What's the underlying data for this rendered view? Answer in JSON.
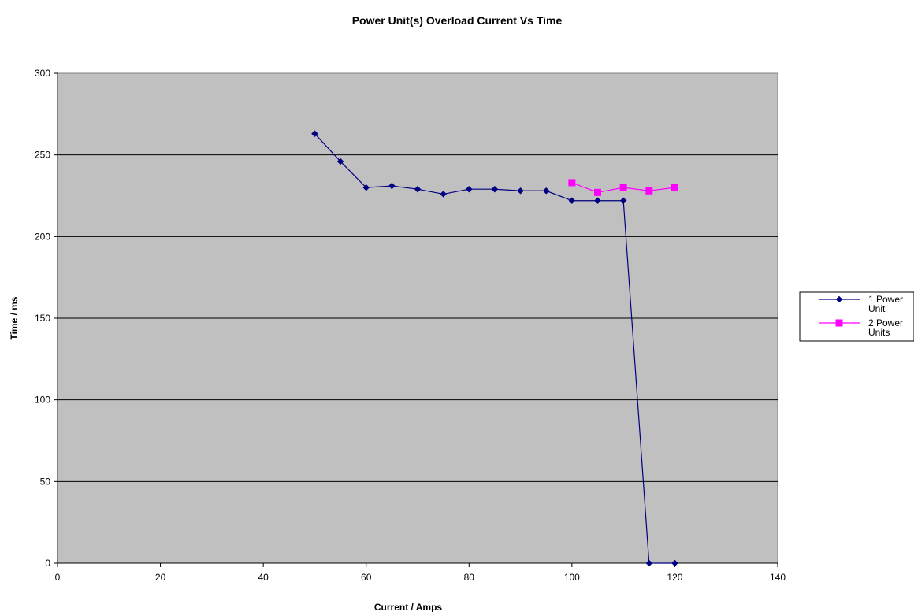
{
  "chart_data": {
    "type": "line",
    "title": "Power Unit(s) Overload Current Vs Time",
    "xlabel": "Current / Amps",
    "ylabel": "Time / ms",
    "xlim": [
      0,
      140
    ],
    "ylim": [
      0,
      300
    ],
    "xticks": [
      0,
      20,
      40,
      60,
      80,
      100,
      120,
      140
    ],
    "yticks": [
      0,
      50,
      100,
      150,
      200,
      250,
      300
    ],
    "grid": "horizontal",
    "plot_background": "#c0c0c0",
    "legend_position": "right",
    "series": [
      {
        "name": "1 Power Unit",
        "legend_lines": [
          "1 Power",
          "Unit"
        ],
        "color": "#000080",
        "marker": "diamond",
        "x": [
          50,
          55,
          60,
          65,
          70,
          75,
          80,
          85,
          90,
          95,
          100,
          105,
          110,
          115,
          120
        ],
        "y": [
          263,
          246,
          230,
          231,
          229,
          226,
          229,
          229,
          228,
          228,
          222,
          222,
          222,
          0,
          0
        ]
      },
      {
        "name": "2 Power Units",
        "legend_lines": [
          "2 Power",
          "Units"
        ],
        "color": "#ff00ff",
        "marker": "square",
        "x": [
          100,
          105,
          110,
          115,
          120
        ],
        "y": [
          233,
          227,
          230,
          228,
          230
        ]
      }
    ]
  }
}
